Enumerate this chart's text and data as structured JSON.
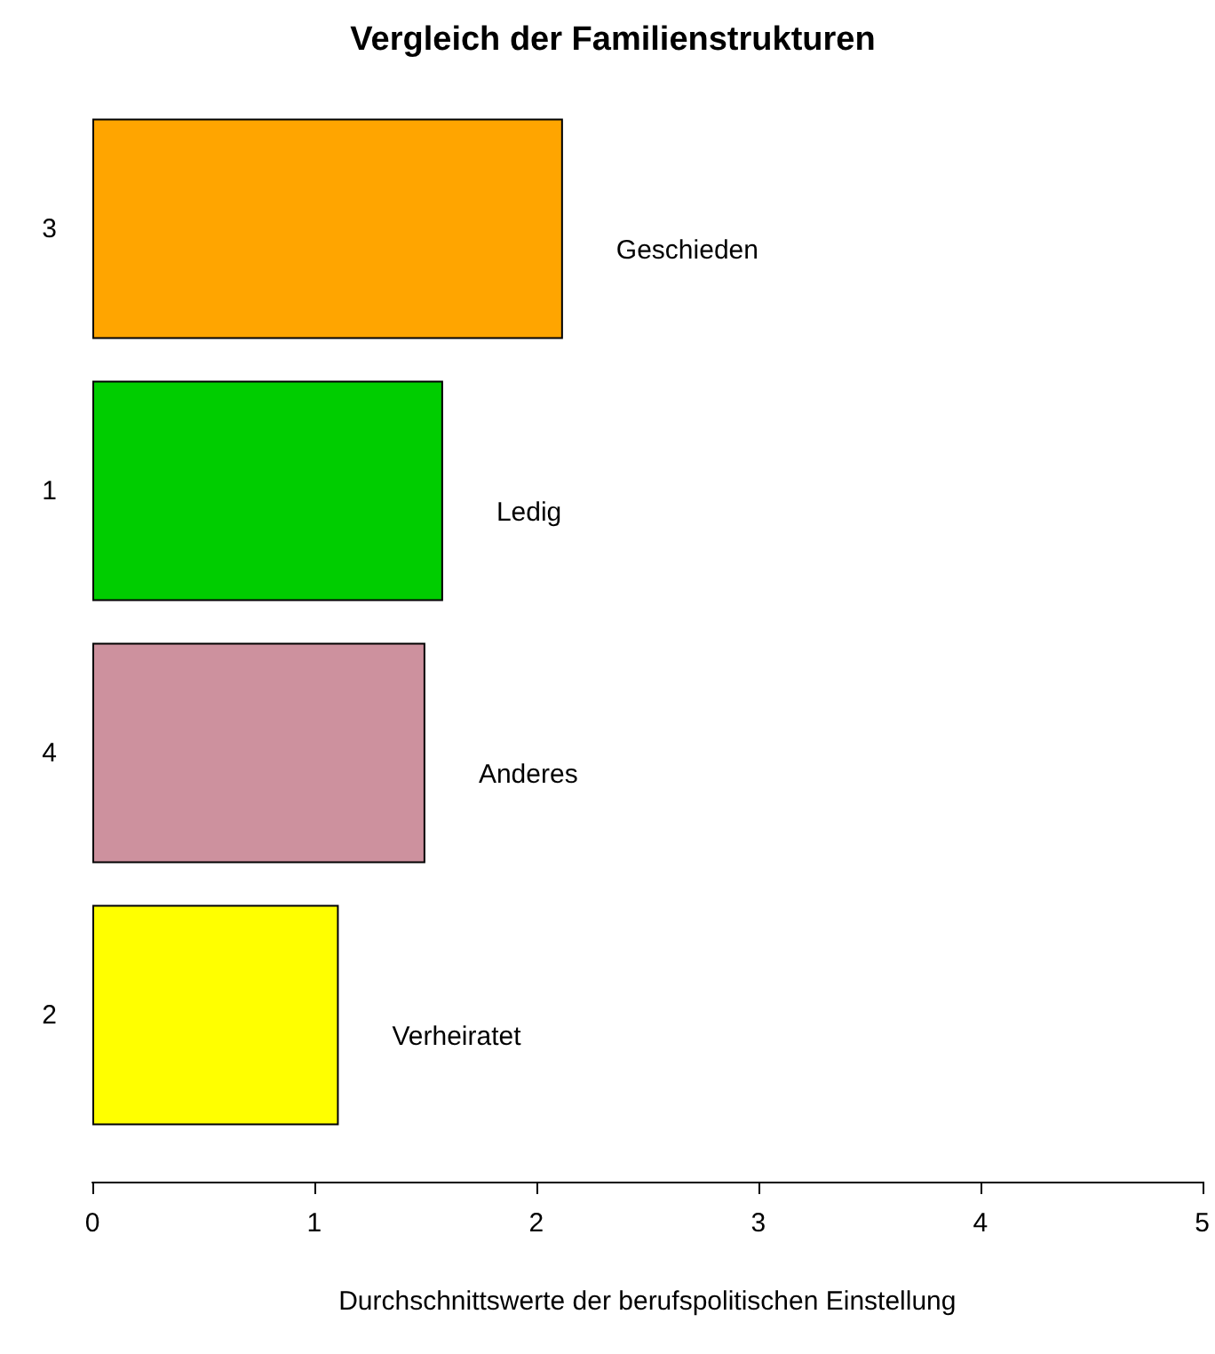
{
  "chart_data": {
    "type": "bar",
    "orientation": "horizontal",
    "title": "Vergleich der Familienstrukturen",
    "xlabel": "Durchschnittswerte der berufspolitischen Einstellung",
    "categories": [
      "3",
      "1",
      "4",
      "2"
    ],
    "values": [
      2.12,
      1.58,
      1.5,
      1.11
    ],
    "colors": [
      "#ffa500",
      "#00cd00",
      "#cd919e",
      "#ffff00"
    ],
    "xlim": [
      0,
      5
    ],
    "xticks": [
      0,
      1,
      2,
      3,
      4,
      5
    ],
    "grid": false,
    "annotations": [
      "Geschieden",
      "Ledig",
      "Anderes",
      "Verheiratet"
    ]
  }
}
